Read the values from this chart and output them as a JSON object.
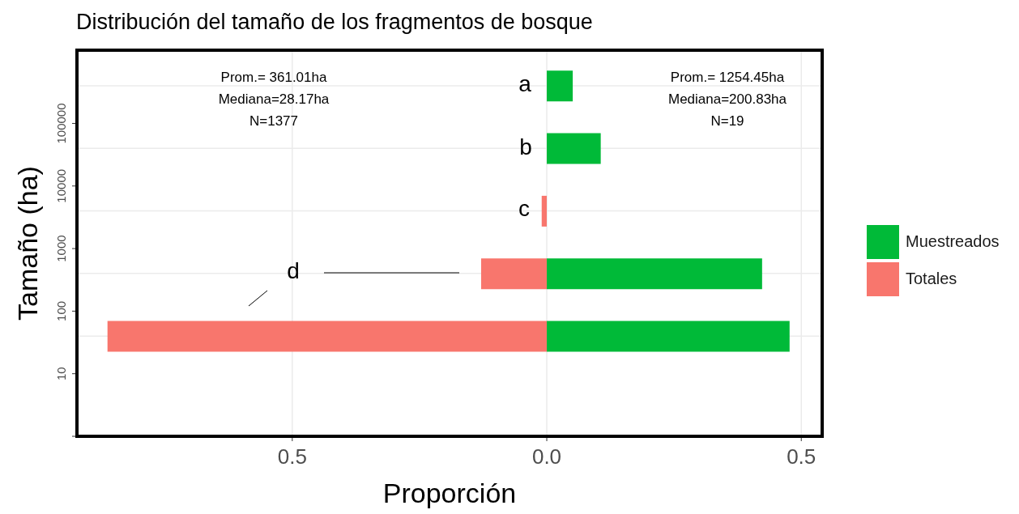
{
  "chart_data": {
    "type": "bar",
    "orientation": "horizontal",
    "stacked": true,
    "title": "Distribución del tamaño de los fragmentos de bosque",
    "xlabel": "Proporción",
    "ylabel": "Tamaño (ha)",
    "x": [
      400000,
      40000,
      4000,
      400,
      40
    ],
    "series": [
      {
        "name": "Muestreados",
        "color": "#00ba38",
        "values": [
          0.051,
          0.106,
          0,
          0.423,
          0.477
        ]
      },
      {
        "name": "Totales",
        "color": "#f8766d",
        "values": [
          0,
          0,
          -0.01,
          -0.129,
          -0.863
        ]
      }
    ],
    "xlim": [
      -0.923,
      0.541
    ],
    "xticks": [
      {
        "value": -0.5,
        "label": "0.5"
      },
      {
        "value": 0,
        "label": "0.0"
      },
      0.5
    ],
    "ylim": [
      1,
      1480000
    ],
    "yticks": [
      {
        "value": 1,
        "label": null
      },
      10,
      100,
      1000,
      10000,
      100000
    ],
    "log": "y",
    "grid": true,
    "legend": "right",
    "annotations": [
      "Prom.= 361.01ha\nMediana=28.17ha\nN=1377",
      "Prom.= 1254.45ha\nMediana=200.83ha\nN=19",
      "a",
      "b",
      "c",
      "d"
    ]
  }
}
